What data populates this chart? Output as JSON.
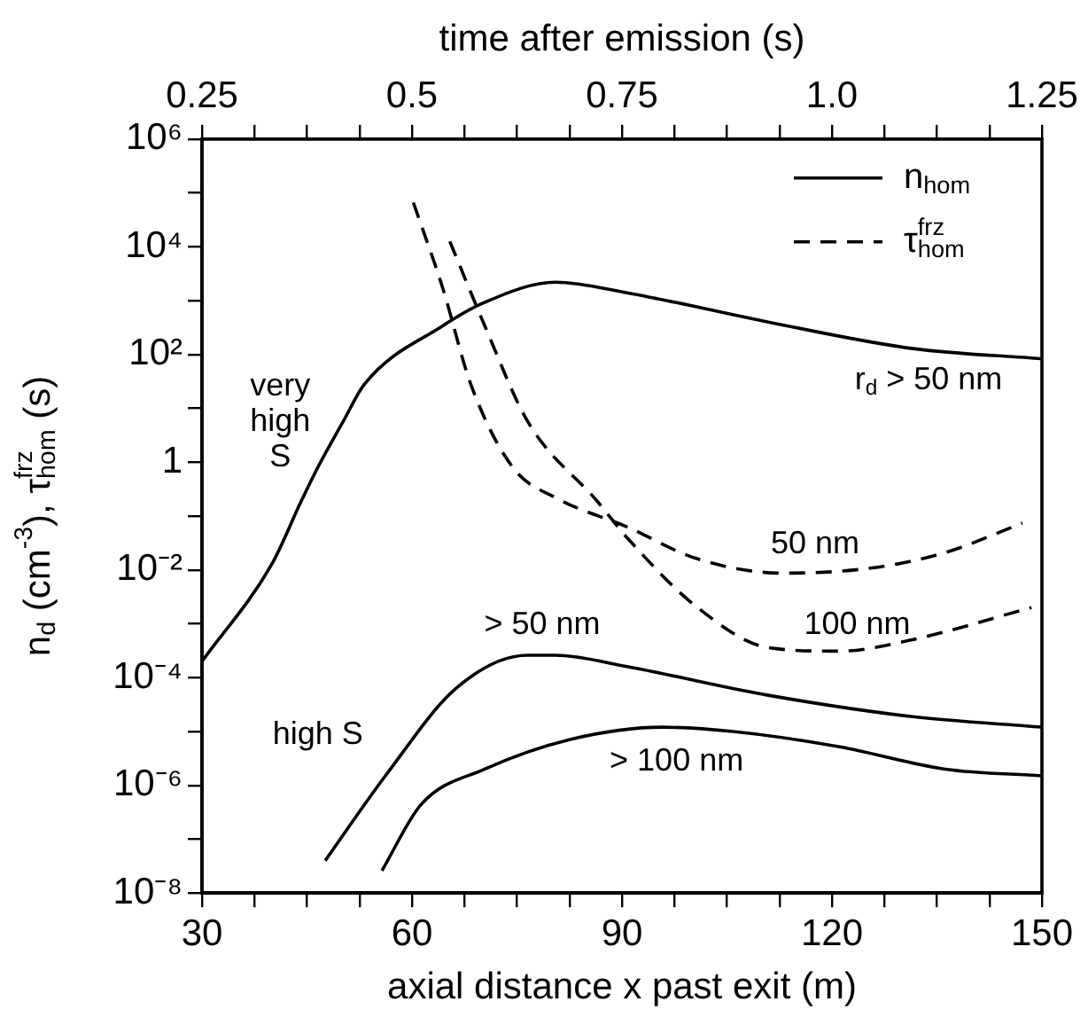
{
  "chart_data": {
    "type": "line",
    "x2label": "time after emission (s)",
    "xlabel": "axial distance x past exit (m)",
    "ylabel": "n$_{d}$ (cm$^{-3}$), τ$^{frz}$$_{hom}$ (s)",
    "xlim": [
      30,
      150
    ],
    "xticks": [
      30,
      {
        "value": 37.5,
        "label": null
      },
      {
        "value": 45,
        "label": null
      },
      {
        "value": 52.5,
        "label": null
      },
      60,
      {
        "value": 67.5,
        "label": null
      },
      {
        "value": 75,
        "label": null
      },
      {
        "value": 82.5,
        "label": null
      },
      90,
      {
        "value": 97.5,
        "label": null
      },
      {
        "value": 105,
        "label": null
      },
      {
        "value": 112.5,
        "label": null
      },
      120,
      {
        "value": 127.5,
        "label": null
      },
      {
        "value": 135,
        "label": null
      },
      {
        "value": 142.5,
        "label": null
      },
      150
    ],
    "x2lim": [
      0.25,
      1.25
    ],
    "x2ticks": [
      0.25,
      {
        "value": 0.3125,
        "label": null
      },
      {
        "value": 0.375,
        "label": null
      },
      {
        "value": 0.4375,
        "label": null
      },
      0.5,
      {
        "value": 0.5625,
        "label": null
      },
      {
        "value": 0.625,
        "label": null
      },
      {
        "value": 0.6875,
        "label": null
      },
      0.75,
      {
        "value": 0.8125,
        "label": null
      },
      {
        "value": 0.875,
        "label": null
      },
      {
        "value": 0.9375,
        "label": null
      },
      {
        "value": 1.0,
        "label": "1.0"
      },
      {
        "value": 1.0625,
        "label": null
      },
      {
        "value": 1.125,
        "label": null
      },
      {
        "value": 1.1875,
        "label": null
      },
      1.25
    ],
    "ylim": [
      1e-08,
      1000000
    ],
    "yticks": [
      {
        "value": 1e-08,
        "label": "10⁻⁸"
      },
      {
        "value": 1e-07,
        "label": null
      },
      {
        "value": 1e-06,
        "label": "10⁻⁶"
      },
      {
        "value": 1e-05,
        "label": null
      },
      {
        "value": 0.0001,
        "label": "10⁻⁴"
      },
      {
        "value": 0.001,
        "label": null
      },
      {
        "value": 0.01,
        "label": "10⁻²"
      },
      {
        "value": 0.1,
        "label": null
      },
      1,
      {
        "value": 10,
        "label": null
      },
      {
        "value": 100,
        "label": "10²"
      },
      {
        "value": 1000,
        "label": null
      },
      {
        "value": 10000,
        "label": "10⁴"
      },
      {
        "value": 100000,
        "label": null
      },
      {
        "value": 1000000,
        "label": "10⁶"
      }
    ],
    "log": "y",
    "grid": false,
    "legend": "top right",
    "marker": "none",
    "series": [
      {
        "name": "n$_{hom}$",
        "color": "#000000",
        "line_style": "solid",
        "x": [
          30,
          40,
          44.1,
          46.5,
          50.2,
          53.2,
          64.4,
          70.4,
          80.5,
          90.7,
          110.9,
          131.3,
          150
        ],
        "values": [
          0.0002,
          0.013,
          0.18,
          0.78,
          5.8,
          28,
          340,
          930,
          2200,
          1400,
          400,
          130,
          83
        ]
      },
      {
        "name": "τ$^{frz}$$_{hom}$",
        "color": "#000000",
        "line_style": "dashed",
        "x": [
          60.2,
          64.4,
          68.4,
          74.4,
          80.5,
          90.7,
          100.8,
          113,
          126,
          136.2,
          147.2
        ],
        "values": [
          66000,
          1700,
          28,
          0.8,
          0.22,
          0.063,
          0.016,
          0.0087,
          0.011,
          0.021,
          0.074
        ]
      },
      {
        "color": "#000000",
        "line_style": "dashed",
        "x": [
          65.4,
          70.4,
          76.5,
          86.6,
          90.7,
          100.8,
          110.9,
          121.1,
          131.3,
          148.5
        ],
        "values": [
          12600,
          340,
          5.8,
          0.18,
          0.04,
          0.002,
          0.00036,
          0.00031,
          0.0005,
          0.002
        ]
      },
      {
        "color": "#000000",
        "line_style": "solid",
        "x": [
          47.6,
          56.2,
          66.4,
          76.5,
          80.5,
          90.7,
          110.9,
          131.3,
          150
        ],
        "values": [
          4e-08,
          1.5e-06,
          6.5e-05,
          0.00026,
          0.00026,
          0.00016,
          4.7e-05,
          1.9e-05,
          1.2e-05
        ]
      },
      {
        "color": "#000000",
        "line_style": "solid",
        "x": [
          55.7,
          61.3,
          70.4,
          82.6,
          95.8,
          105.9,
          121.1,
          136.2,
          150
        ],
        "values": [
          2.6e-08,
          4.4e-07,
          2e-06,
          7.1e-06,
          1.2e-05,
          1e-05,
          5.2e-06,
          2e-06,
          1.5e-06
        ]
      }
    ],
    "annotations": [
      "very\nhigh\nS",
      "r$_{d}$ > 50 nm",
      "50 nm",
      "100 nm",
      "> 50 nm",
      "high S",
      "> 100 nm"
    ]
  }
}
